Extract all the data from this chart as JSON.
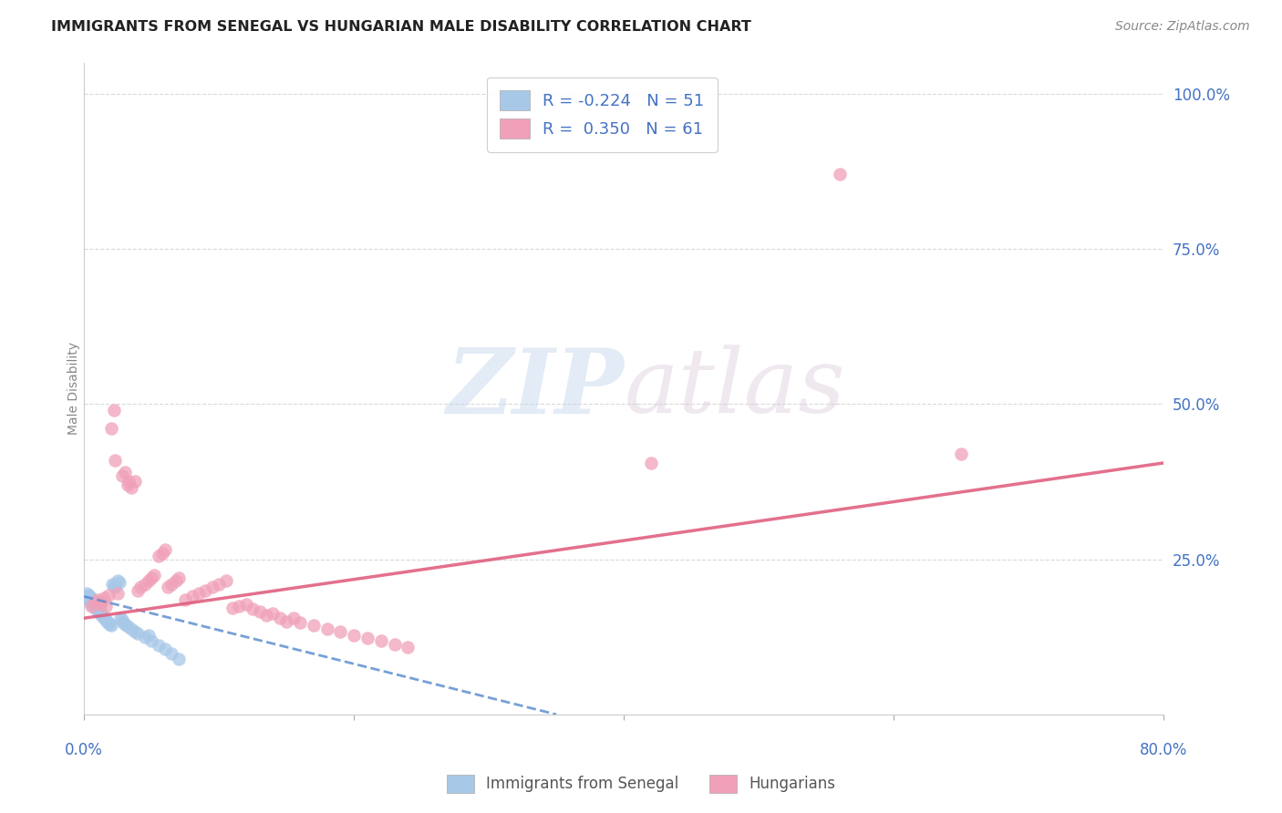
{
  "title": "IMMIGRANTS FROM SENEGAL VS HUNGARIAN MALE DISABILITY CORRELATION CHART",
  "source": "Source: ZipAtlas.com",
  "ylabel": "Male Disability",
  "xlim": [
    0.0,
    0.8
  ],
  "ylim": [
    0.0,
    1.05
  ],
  "senegal_color": "#a8c8e8",
  "hungarian_color": "#f0a0b8",
  "senegal_line_color": "#5588cc",
  "hungarian_line_color": "#e06080",
  "senegal_scatter": [
    [
      0.001,
      0.19
    ],
    [
      0.002,
      0.188
    ],
    [
      0.002,
      0.195
    ],
    [
      0.003,
      0.185
    ],
    [
      0.003,
      0.192
    ],
    [
      0.004,
      0.183
    ],
    [
      0.004,
      0.19
    ],
    [
      0.005,
      0.18
    ],
    [
      0.005,
      0.188
    ],
    [
      0.006,
      0.178
    ],
    [
      0.006,
      0.185
    ],
    [
      0.007,
      0.175
    ],
    [
      0.007,
      0.182
    ],
    [
      0.008,
      0.173
    ],
    [
      0.008,
      0.18
    ],
    [
      0.009,
      0.17
    ],
    [
      0.009,
      0.178
    ],
    [
      0.01,
      0.168
    ],
    [
      0.01,
      0.175
    ],
    [
      0.011,
      0.165
    ],
    [
      0.011,
      0.172
    ],
    [
      0.012,
      0.162
    ],
    [
      0.012,
      0.17
    ],
    [
      0.013,
      0.16
    ],
    [
      0.014,
      0.158
    ],
    [
      0.015,
      0.155
    ],
    [
      0.016,
      0.153
    ],
    [
      0.017,
      0.15
    ],
    [
      0.018,
      0.148
    ],
    [
      0.019,
      0.145
    ],
    [
      0.02,
      0.143
    ],
    [
      0.021,
      0.21
    ],
    [
      0.022,
      0.208
    ],
    [
      0.023,
      0.205
    ],
    [
      0.025,
      0.215
    ],
    [
      0.026,
      0.212
    ],
    [
      0.027,
      0.155
    ],
    [
      0.028,
      0.152
    ],
    [
      0.029,
      0.148
    ],
    [
      0.03,
      0.145
    ],
    [
      0.032,
      0.142
    ],
    [
      0.035,
      0.138
    ],
    [
      0.038,
      0.133
    ],
    [
      0.04,
      0.13
    ],
    [
      0.045,
      0.125
    ],
    [
      0.05,
      0.118
    ],
    [
      0.055,
      0.112
    ],
    [
      0.06,
      0.105
    ],
    [
      0.065,
      0.098
    ],
    [
      0.07,
      0.09
    ],
    [
      0.048,
      0.128
    ]
  ],
  "hungarian_scatter": [
    [
      0.005,
      0.175
    ],
    [
      0.008,
      0.18
    ],
    [
      0.01,
      0.185
    ],
    [
      0.012,
      0.178
    ],
    [
      0.013,
      0.182
    ],
    [
      0.015,
      0.188
    ],
    [
      0.016,
      0.175
    ],
    [
      0.018,
      0.192
    ],
    [
      0.02,
      0.46
    ],
    [
      0.022,
      0.49
    ],
    [
      0.023,
      0.41
    ],
    [
      0.025,
      0.195
    ],
    [
      0.028,
      0.385
    ],
    [
      0.03,
      0.39
    ],
    [
      0.032,
      0.37
    ],
    [
      0.033,
      0.375
    ],
    [
      0.035,
      0.365
    ],
    [
      0.038,
      0.375
    ],
    [
      0.04,
      0.2
    ],
    [
      0.042,
      0.205
    ],
    [
      0.045,
      0.21
    ],
    [
      0.048,
      0.215
    ],
    [
      0.05,
      0.22
    ],
    [
      0.052,
      0.225
    ],
    [
      0.055,
      0.255
    ],
    [
      0.058,
      0.26
    ],
    [
      0.06,
      0.265
    ],
    [
      0.062,
      0.205
    ],
    [
      0.065,
      0.21
    ],
    [
      0.068,
      0.215
    ],
    [
      0.07,
      0.22
    ],
    [
      0.075,
      0.185
    ],
    [
      0.08,
      0.19
    ],
    [
      0.085,
      0.195
    ],
    [
      0.09,
      0.2
    ],
    [
      0.095,
      0.205
    ],
    [
      0.1,
      0.21
    ],
    [
      0.105,
      0.215
    ],
    [
      0.11,
      0.172
    ],
    [
      0.115,
      0.175
    ],
    [
      0.12,
      0.178
    ],
    [
      0.125,
      0.17
    ],
    [
      0.13,
      0.165
    ],
    [
      0.135,
      0.16
    ],
    [
      0.14,
      0.163
    ],
    [
      0.145,
      0.155
    ],
    [
      0.15,
      0.15
    ],
    [
      0.155,
      0.155
    ],
    [
      0.16,
      0.148
    ],
    [
      0.17,
      0.143
    ],
    [
      0.18,
      0.138
    ],
    [
      0.19,
      0.133
    ],
    [
      0.2,
      0.128
    ],
    [
      0.21,
      0.123
    ],
    [
      0.22,
      0.118
    ],
    [
      0.23,
      0.113
    ],
    [
      0.24,
      0.108
    ],
    [
      0.42,
      0.405
    ],
    [
      0.56,
      0.87
    ],
    [
      0.65,
      0.42
    ]
  ],
  "senegal_line": [
    [
      0.0,
      0.19
    ],
    [
      0.35,
      0.0
    ]
  ],
  "hungarian_line": [
    [
      0.0,
      0.155
    ],
    [
      0.8,
      0.405
    ]
  ],
  "watermark_zip": "ZIP",
  "watermark_atlas": "atlas",
  "background_color": "#ffffff",
  "grid_color": "#d0d0d0"
}
